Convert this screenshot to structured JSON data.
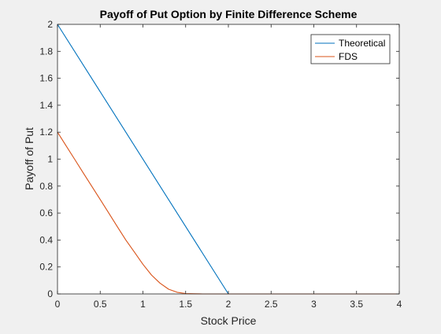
{
  "chart_data": {
    "type": "line",
    "title": "Payoff of Put Option by Finite Difference Scheme",
    "xlabel": "Stock Price",
    "ylabel": "Payoff of Put",
    "xlim": [
      0,
      4
    ],
    "ylim": [
      0,
      2
    ],
    "xticks": [
      0,
      0.5,
      1,
      1.5,
      2,
      2.5,
      3,
      3.5,
      4
    ],
    "xtick_labels": [
      "0",
      "0.5",
      "1",
      "1.5",
      "2",
      "2.5",
      "3",
      "3.5",
      "4"
    ],
    "yticks": [
      0,
      0.2,
      0.4,
      0.6,
      0.8,
      1,
      1.2,
      1.4,
      1.6,
      1.8,
      2
    ],
    "ytick_labels": [
      "0",
      "0.2",
      "0.4",
      "0.6",
      "0.8",
      "1",
      "1.2",
      "1.4",
      "1.6",
      "1.8",
      "2"
    ],
    "grid": false,
    "legend_position": "top-right",
    "series": [
      {
        "name": "Theoretical",
        "color": "#0072BD",
        "x": [
          0,
          2,
          4
        ],
        "y": [
          2,
          0,
          0
        ]
      },
      {
        "name": "FDS",
        "color": "#D95319",
        "x": [
          0,
          0.1,
          0.2,
          0.3,
          0.4,
          0.5,
          0.6,
          0.7,
          0.8,
          0.9,
          1.0,
          1.1,
          1.2,
          1.3,
          1.4,
          1.5,
          1.6,
          1.7,
          2.0,
          2.5,
          3.0,
          3.5,
          4.0
        ],
        "y": [
          1.2,
          1.1,
          1.0,
          0.9,
          0.8,
          0.7,
          0.6,
          0.5,
          0.4,
          0.31,
          0.22,
          0.14,
          0.08,
          0.035,
          0.012,
          0.003,
          0.001,
          0,
          0,
          0,
          0,
          0,
          0
        ]
      }
    ]
  }
}
